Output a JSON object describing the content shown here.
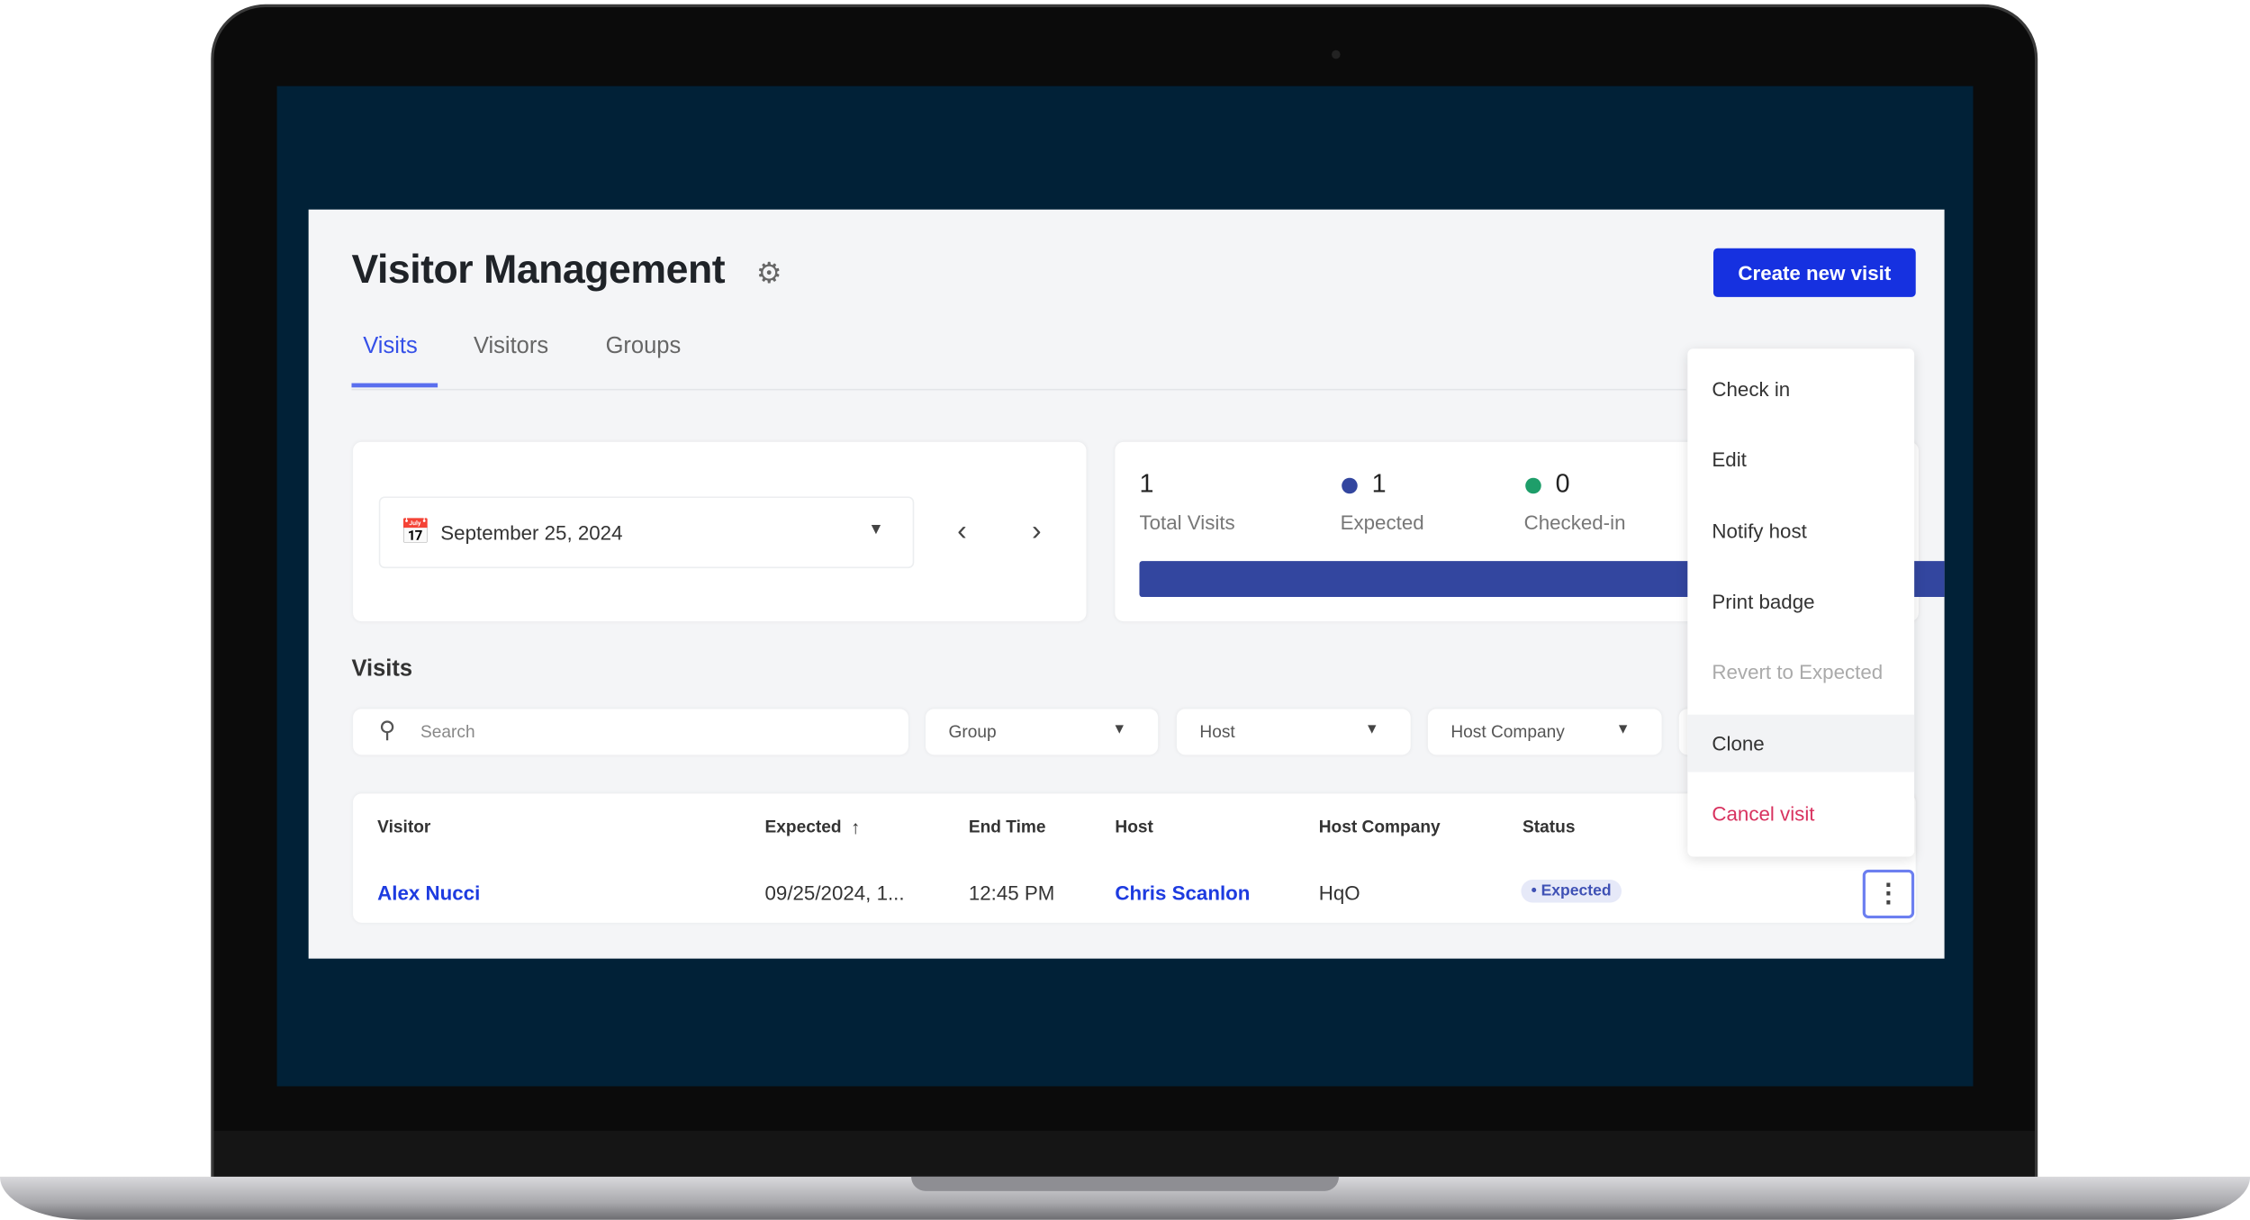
{
  "header": {
    "title": "Visitor Management",
    "create_button": "Create new visit",
    "settings_icon": "gear-icon"
  },
  "tabs": [
    {
      "label": "Visits",
      "active": true
    },
    {
      "label": "Visitors",
      "active": false
    },
    {
      "label": "Groups",
      "active": false
    }
  ],
  "date_picker": {
    "value": "September 25, 2024"
  },
  "stats": {
    "total": {
      "value": "1",
      "label": "Total Visits"
    },
    "expected": {
      "value": "1",
      "label": "Expected",
      "color": "#33469f"
    },
    "checked_in": {
      "value": "0",
      "label": "Checked-in",
      "color": "#1e9e6a"
    },
    "expected_fraction": 1.0
  },
  "visits": {
    "heading": "Visits",
    "search_placeholder": "Search",
    "filters": [
      "Group",
      "Host",
      "Host Company"
    ],
    "columns": [
      "Visitor",
      "Expected",
      "End Time",
      "Host",
      "Host Company",
      "Status"
    ],
    "rows": [
      {
        "visitor": "Alex Nucci",
        "expected": "09/25/2024, 1...",
        "end_time": "12:45 PM",
        "host": "Chris Scanlon",
        "host_company": "HqO",
        "status": "Expected"
      }
    ]
  },
  "menu": {
    "items": [
      {
        "label": "Check in"
      },
      {
        "label": "Edit"
      },
      {
        "label": "Notify host"
      },
      {
        "label": "Print badge"
      },
      {
        "label": "Revert to Expected",
        "disabled": true
      },
      {
        "label": "Clone",
        "hovered": true
      },
      {
        "label": "Cancel visit",
        "danger": true
      }
    ]
  },
  "colors": {
    "primary": "#1631e0",
    "link": "#1d3be0",
    "danger": "#d8325f",
    "screen_bg": "#012137"
  }
}
